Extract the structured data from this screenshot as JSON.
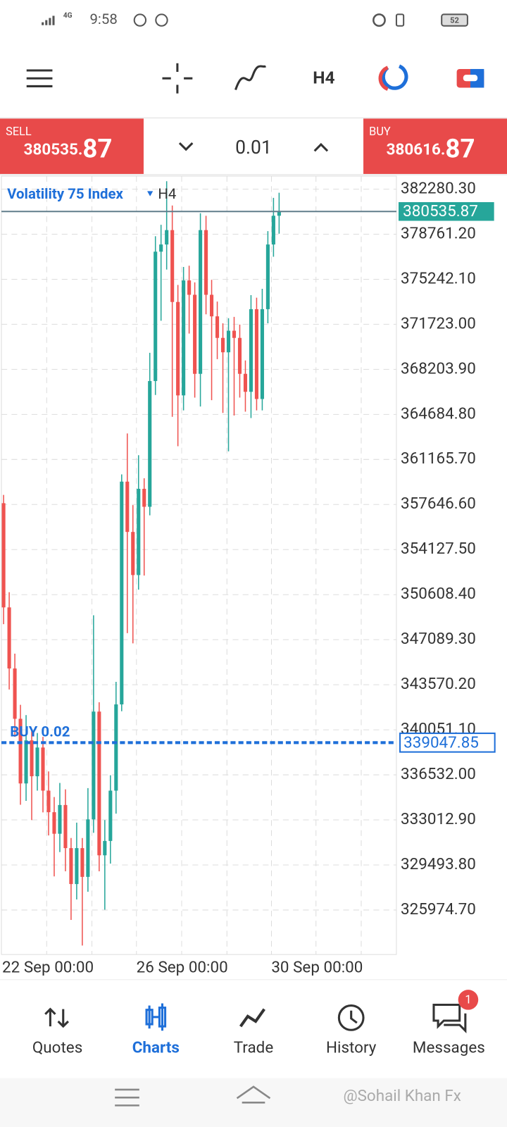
{
  "status_bar": {
    "network": "4G",
    "time": "9:58",
    "battery": "52"
  },
  "toolbar": {
    "timeframe": "H4"
  },
  "trade_bar": {
    "sell_label": "SELL",
    "sell_price_main": "380535.",
    "sell_price_big": "87",
    "lot": "0.01",
    "buy_label": "BUY",
    "buy_price_main": "380616.",
    "buy_price_big": "87"
  },
  "chart_data": {
    "type": "candlestick",
    "title": "Volatility 75 Index",
    "timeframe": "H4",
    "categories": [
      "22 Sep 00:00",
      null,
      null,
      null,
      null,
      null,
      null,
      null,
      null,
      null,
      null,
      null,
      null,
      null,
      null,
      null,
      null,
      null,
      null,
      null,
      null,
      null,
      null,
      null,
      "26 Sep 00:00",
      null,
      null,
      null,
      null,
      null,
      null,
      null,
      null,
      null,
      null,
      null,
      null,
      null,
      null,
      null,
      null,
      null,
      null,
      null,
      null,
      null,
      null,
      null,
      "30 Sep 00:00",
      null
    ],
    "open": [
      357751,
      349612,
      344841,
      340912,
      335860,
      339228,
      336422,
      338667,
      335299,
      333615,
      331931,
      334177,
      330809,
      328002,
      330809,
      328564,
      333054,
      341473,
      330247,
      331370,
      335299,
      342035,
      359435,
      355506,
      352138,
      358874,
      357471,
      367293,
      377397,
      377958,
      379081,
      373468,
      366171,
      375151,
      374029,
      367855,
      379081,
      374029,
      372345,
      370661,
      369538,
      371222,
      370661,
      367855,
      366451,
      372906,
      365890,
      372906,
      377958,
      380203
    ],
    "high": [
      358400,
      350800,
      346000,
      342000,
      341200,
      340000,
      339800,
      339500,
      336800,
      334800,
      335900,
      335400,
      331600,
      332800,
      331600,
      335500,
      349000,
      342200,
      333000,
      336500,
      343800,
      360000,
      363200,
      357600,
      361500,
      359700,
      369500,
      378600,
      379500,
      382900,
      381000,
      374800,
      376200,
      376300,
      375000,
      380400,
      380200,
      375200,
      373500,
      371800,
      372200,
      372300,
      371700,
      368900,
      374000,
      373800,
      374500,
      379000,
      381600,
      382000
    ],
    "low": [
      348300,
      343200,
      339500,
      334200,
      334500,
      333000,
      335300,
      333600,
      331800,
      328600,
      330500,
      329000,
      325200,
      326800,
      323200,
      327400,
      332000,
      329000,
      326000,
      329600,
      333500,
      341500,
      347600,
      346800,
      351000,
      352100,
      356800,
      366200,
      372000,
      376000,
      364500,
      362200,
      365000,
      371000,
      366000,
      365300,
      372500,
      365800,
      369000,
      364800,
      361800,
      364600,
      366000,
      364900,
      364400,
      365000,
      365000,
      371800,
      377000,
      378800
    ],
    "close": [
      349612,
      344841,
      340912,
      335860,
      339228,
      336422,
      338667,
      335299,
      333615,
      331931,
      334177,
      330809,
      328002,
      330809,
      328564,
      333054,
      341473,
      330247,
      331370,
      335299,
      342035,
      359435,
      355506,
      352138,
      358874,
      357471,
      367293,
      377397,
      377958,
      379081,
      373468,
      366171,
      375151,
      374029,
      367855,
      379081,
      374029,
      372345,
      370661,
      369538,
      371222,
      370661,
      367855,
      366451,
      372906,
      365890,
      372906,
      377958,
      380203,
      380536
    ],
    "up_color": "#26a69a",
    "down_color": "#ef5350",
    "ylim": [
      322500,
      383300
    ],
    "yticks": [
      {
        "value": 382280.3,
        "label": "382280.30"
      },
      {
        "value": 378761.2,
        "label": "378761.20"
      },
      {
        "value": 375242.1,
        "label": "375242.10"
      },
      {
        "value": 371723,
        "label": "371723.00"
      },
      {
        "value": 368203.9,
        "label": "368203.90"
      },
      {
        "value": 364684.8,
        "label": "364684.80"
      },
      {
        "value": 361165.7,
        "label": "361165.70"
      },
      {
        "value": 357646.6,
        "label": "357646.60"
      },
      {
        "value": 354127.5,
        "label": "354127.50"
      },
      {
        "value": 350608.4,
        "label": "350608.40"
      },
      {
        "value": 347089.3,
        "label": "347089.30"
      },
      {
        "value": 343570.2,
        "label": "343570.20"
      },
      {
        "value": 340051.1,
        "label": "340051.10"
      },
      {
        "value": 336532,
        "label": "336532.00"
      },
      {
        "value": 333012.9,
        "label": "333012.90"
      },
      {
        "value": 329493.8,
        "label": "329493.80"
      },
      {
        "value": 325974.7,
        "label": "325974.70"
      }
    ],
    "grid": true,
    "current_price": 380535.87,
    "position": {
      "label": "BUY 0.02",
      "value": 339047.85
    }
  },
  "nav": {
    "items": [
      "Quotes",
      "Charts",
      "Trade",
      "History",
      "Messages"
    ],
    "badge": "1"
  },
  "watermark": "@Sohail Khan Fx"
}
